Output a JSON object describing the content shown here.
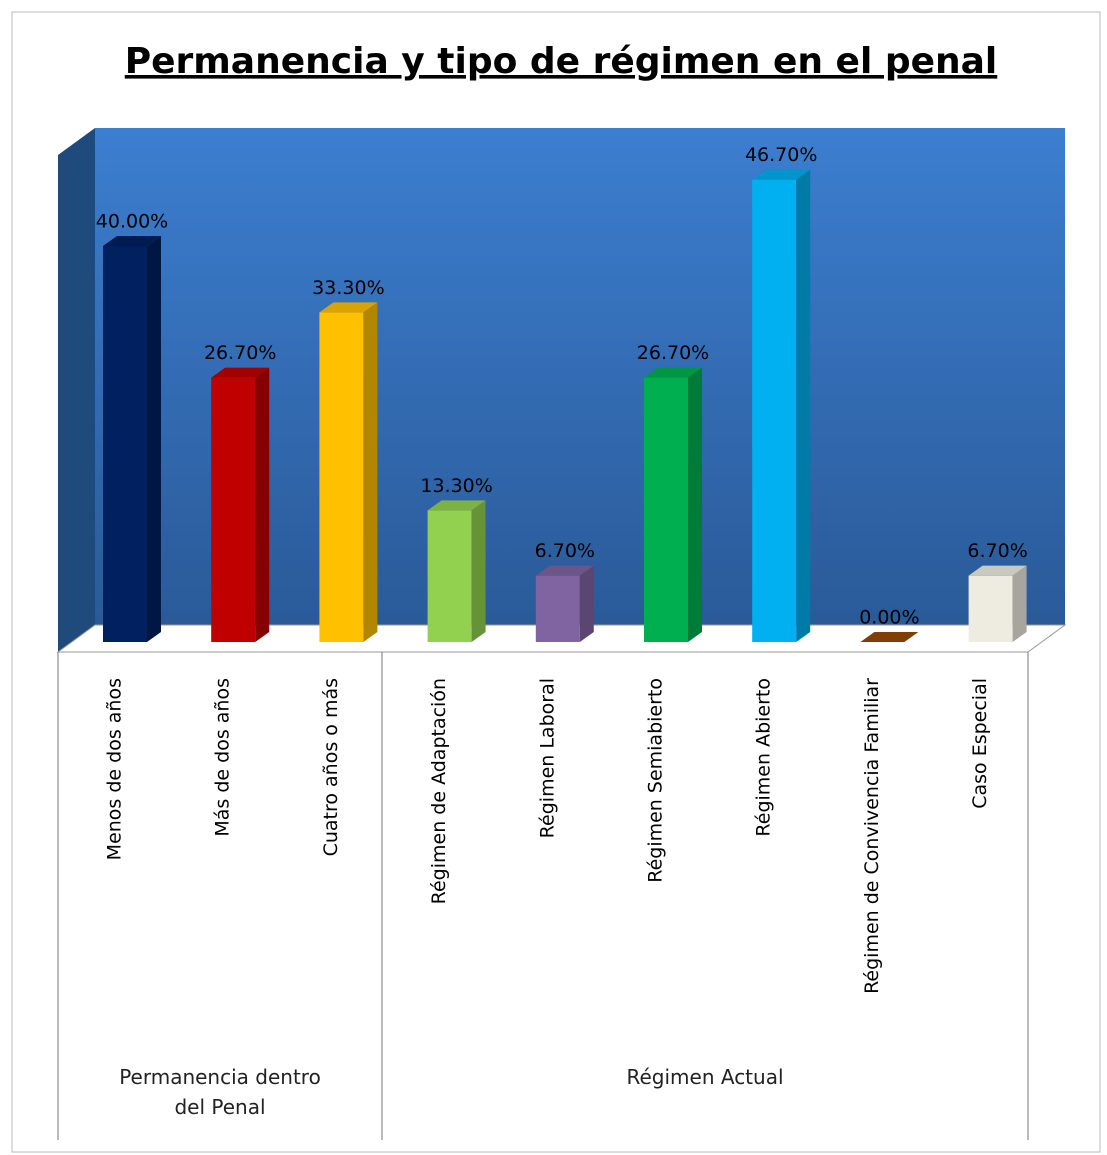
{
  "chart_data": {
    "type": "bar3d",
    "title": "Permanencia y tipo de régimen en el penal",
    "categories": [
      "Menos de dos años",
      "Más de dos años",
      "Cuatro años o más",
      "Régimen de Adaptación",
      "Régimen Laboral",
      "Régimen Semiabierto",
      "Régimen Abierto",
      "Régimen de Convivencia Familiar",
      "Caso Especial"
    ],
    "values": [
      40,
      26.7,
      33.3,
      13.3,
      6.7,
      26.7,
      46.7,
      0,
      6.7
    ],
    "value_labels": [
      "40.00%",
      "26.70%",
      "33.30%",
      "13.30%",
      "6.70%",
      "26.70%",
      "46.70%",
      "0.00%",
      "6.70%"
    ],
    "colors": [
      "#002060",
      "#c00000",
      "#ffc000",
      "#92d050",
      "#8064a2",
      "#00b050",
      "#00b0f0",
      "#984807",
      "#eeece1"
    ],
    "groups": [
      {
        "label": "Permanencia dentro del Penal",
        "size": 3
      },
      {
        "label": "Régimen Actual",
        "size": 6
      }
    ]
  }
}
